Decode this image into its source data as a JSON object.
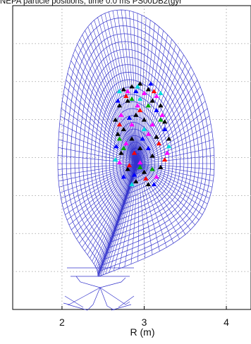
{
  "chart_data": {
    "type": "scatter",
    "title": "NEPA particle positions, time 0.0 ms  PS00DB2(gyr",
    "xlabel": "R (m)",
    "ylabel": "",
    "xlim": [
      1.4,
      4.3
    ],
    "ylim": [
      -1.6,
      1.6
    ],
    "x_ticks": [
      "2",
      "3",
      "4"
    ],
    "grid": true,
    "grid_style": "dotted",
    "mesh": {
      "description": "flux-surface computational grid",
      "color": "#3333cc",
      "axis_center": [
        2.97,
        0.3
      ],
      "n_surfaces": 22,
      "n_rays": 120
    },
    "marker": "triangle",
    "series": [
      {
        "color": "#000000",
        "points": [
          [
            2.75,
            0.72
          ],
          [
            2.85,
            0.75
          ],
          [
            2.95,
            0.78
          ],
          [
            3.05,
            0.72
          ],
          [
            2.7,
            0.55
          ],
          [
            2.8,
            0.6
          ],
          [
            3.1,
            0.6
          ],
          [
            3.2,
            0.55
          ],
          [
            2.65,
            0.4
          ],
          [
            2.9,
            0.45
          ],
          [
            3.0,
            0.4
          ],
          [
            3.25,
            0.38
          ],
          [
            2.68,
            0.25
          ],
          [
            2.85,
            0.2
          ],
          [
            3.15,
            0.22
          ],
          [
            2.72,
            0.05
          ],
          [
            2.95,
            0.1
          ],
          [
            3.1,
            0.02
          ],
          [
            2.8,
            -0.12
          ],
          [
            3.0,
            -0.15
          ],
          [
            3.2,
            -0.1
          ],
          [
            2.9,
            -0.25
          ],
          [
            3.05,
            -0.28
          ],
          [
            2.75,
            0.3
          ],
          [
            3.3,
            0.2
          ]
        ]
      },
      {
        "color": "#ff00ff",
        "points": [
          [
            2.8,
            0.7
          ],
          [
            3.0,
            0.68
          ],
          [
            3.15,
            0.65
          ],
          [
            2.72,
            0.45
          ],
          [
            2.92,
            0.55
          ],
          [
            3.22,
            0.45
          ],
          [
            2.78,
            0.15
          ],
          [
            3.05,
            0.25
          ],
          [
            3.28,
            0.05
          ],
          [
            2.7,
            -0.05
          ],
          [
            2.95,
            -0.05
          ],
          [
            3.15,
            -0.2
          ],
          [
            2.85,
            0.35
          ],
          [
            3.1,
            0.35
          ]
        ]
      },
      {
        "color": "#0000ff",
        "points": [
          [
            2.9,
            0.7
          ],
          [
            3.08,
            0.78
          ],
          [
            2.68,
            0.6
          ],
          [
            3.15,
            0.5
          ],
          [
            2.82,
            0.42
          ],
          [
            3.05,
            0.1
          ],
          [
            2.66,
            0.12
          ],
          [
            3.25,
            0.3
          ],
          [
            2.88,
            -0.18
          ],
          [
            3.12,
            -0.28
          ],
          [
            2.75,
            -0.2
          ],
          [
            2.98,
            0.2
          ]
        ]
      },
      {
        "color": "#ff0000",
        "points": [
          [
            2.78,
            0.65
          ],
          [
            3.12,
            0.7
          ],
          [
            2.95,
            0.5
          ],
          [
            2.7,
            0.35
          ],
          [
            3.18,
            0.15
          ],
          [
            2.88,
            0.05
          ],
          [
            3.02,
            -0.22
          ],
          [
            2.82,
            -0.08
          ],
          [
            3.25,
            -0.02
          ]
        ]
      },
      {
        "color": "#00aa00",
        "points": [
          [
            2.85,
            0.62
          ],
          [
            3.05,
            0.55
          ],
          [
            2.75,
            0.1
          ],
          [
            3.2,
            0.4
          ],
          [
            2.95,
            -0.1
          ],
          [
            2.7,
            0.2
          ],
          [
            3.1,
            -0.12
          ]
        ]
      },
      {
        "color": "#00dddd",
        "points": [
          [
            2.92,
            0.75
          ],
          [
            2.7,
            0.7
          ],
          [
            3.2,
            0.68
          ],
          [
            2.65,
            -0.02
          ],
          [
            3.3,
            0.12
          ],
          [
            2.85,
            -0.28
          ],
          [
            3.0,
            0.3
          ],
          [
            2.95,
            0.62
          ]
        ]
      }
    ]
  }
}
